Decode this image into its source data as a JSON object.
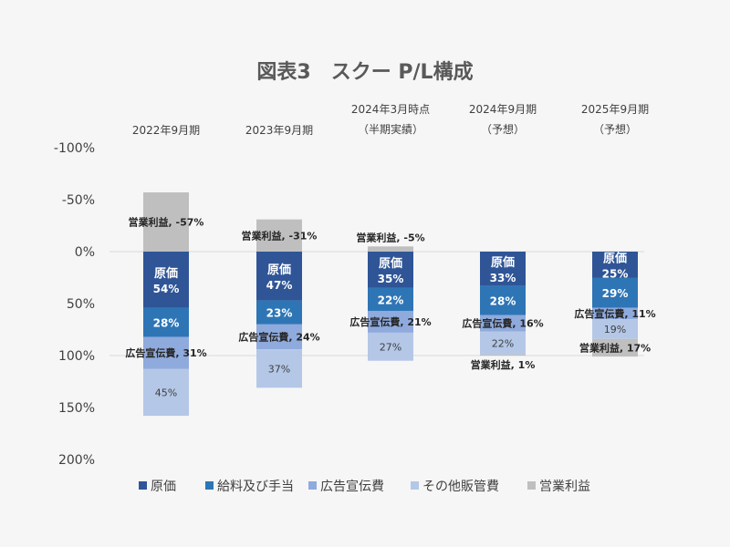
{
  "chart_data": {
    "type": "bar",
    "stacked": true,
    "y_axis_inverted": true,
    "title": "図表3　スクー P/L構成",
    "categories": [
      [
        "2022年9月期"
      ],
      [
        "2023年9月期"
      ],
      [
        "2024年3月時点",
        "（半期実績）"
      ],
      [
        "2024年9月期",
        "（予想）"
      ],
      [
        "2025年9月期",
        "（予想）"
      ]
    ],
    "y_ticks": [
      -100,
      -50,
      0,
      50,
      100,
      150,
      200
    ],
    "y_tick_labels": [
      "-100%",
      "-50%",
      "0%",
      "50%",
      "100%",
      "150%",
      "200%"
    ],
    "ylim": [
      -100,
      200
    ],
    "series": [
      {
        "name": "原価",
        "color": "#2f5597",
        "values": [
          54,
          47,
          35,
          33,
          25
        ]
      },
      {
        "name": "給料及び手当",
        "color": "#2e75b6",
        "values": [
          28,
          23,
          22,
          28,
          29
        ]
      },
      {
        "name": "広告宣伝費",
        "color": "#8faadc",
        "values": [
          31,
          24,
          21,
          16,
          11
        ]
      },
      {
        "name": "その他販管費",
        "color": "#b4c7e7",
        "values": [
          45,
          37,
          27,
          22,
          19
        ]
      },
      {
        "name": "営業利益",
        "color": "#bfbfbf",
        "values": [
          -57,
          -31,
          -5,
          1,
          17
        ]
      }
    ],
    "cost_label": "原価",
    "data_labels": {
      "原価": [
        "54%",
        "47%",
        "35%",
        "33%",
        "25%"
      ],
      "給料及び手当": [
        "28%",
        "23%",
        "22%",
        "28%",
        "29%"
      ],
      "広告宣伝費": [
        "広告宣伝費, 31%",
        "広告宣伝費, 24%",
        "広告宣伝費, 21%",
        "広告宣伝費, 16%",
        "広告宣伝費, 11%"
      ],
      "その他販管費": [
        "45%",
        "37%",
        "27%",
        "22%",
        "19%"
      ],
      "営業利益": [
        "営業利益, -57%",
        "営業利益, -31%",
        "営業利益, -5%",
        "営業利益, 1%",
        "営業利益, 17%"
      ]
    },
    "legend_position": "bottom",
    "grid": true
  }
}
